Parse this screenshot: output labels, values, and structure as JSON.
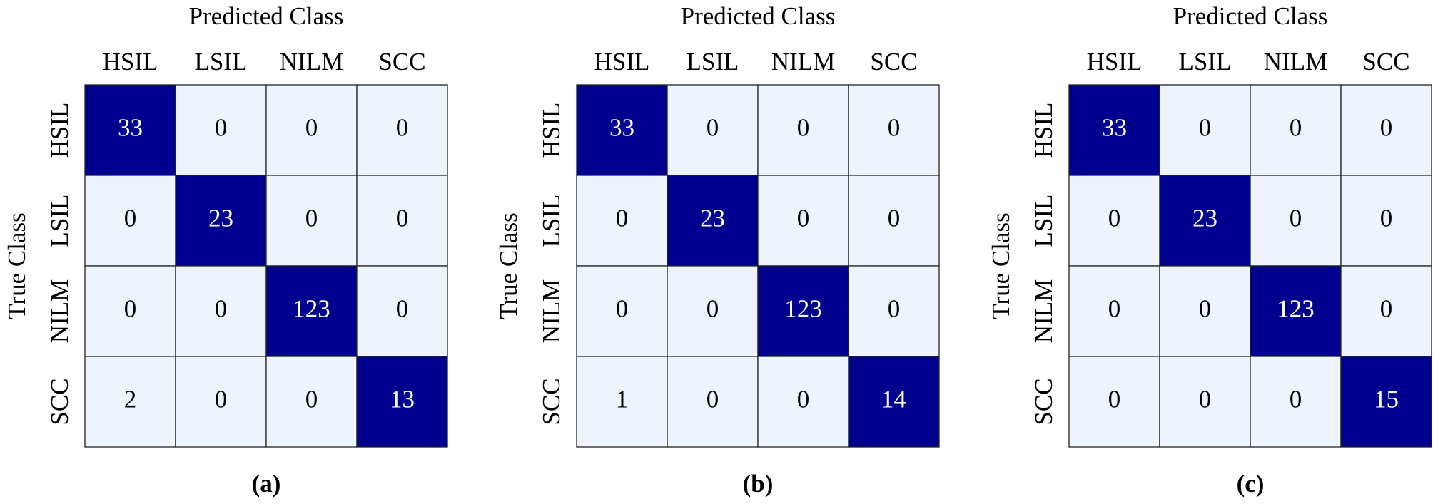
{
  "chart_data": [
    {
      "type": "heatmap",
      "x_label": "Predicted Class",
      "y_label": "True Class",
      "caption": "(a)",
      "x_categories": [
        "HSIL",
        "LSIL",
        "NILM",
        "SCC"
      ],
      "y_categories": [
        "HSIL",
        "LSIL",
        "NILM",
        "SCC"
      ],
      "values": [
        [
          33,
          0,
          0,
          0
        ],
        [
          0,
          23,
          0,
          0
        ],
        [
          0,
          0,
          123,
          0
        ],
        [
          2,
          0,
          0,
          13
        ]
      ],
      "diagonal_color": "#00008f",
      "off_diagonal_color": "#eef4fc"
    },
    {
      "type": "heatmap",
      "x_label": "Predicted Class",
      "y_label": "True Class",
      "caption": "(b)",
      "x_categories": [
        "HSIL",
        "LSIL",
        "NILM",
        "SCC"
      ],
      "y_categories": [
        "HSIL",
        "LSIL",
        "NILM",
        "SCC"
      ],
      "values": [
        [
          33,
          0,
          0,
          0
        ],
        [
          0,
          23,
          0,
          0
        ],
        [
          0,
          0,
          123,
          0
        ],
        [
          1,
          0,
          0,
          14
        ]
      ],
      "diagonal_color": "#00008f",
      "off_diagonal_color": "#eef4fc"
    },
    {
      "type": "heatmap",
      "x_label": "Predicted Class",
      "y_label": "True Class",
      "caption": "(c)",
      "x_categories": [
        "HSIL",
        "LSIL",
        "NILM",
        "SCC"
      ],
      "y_categories": [
        "HSIL",
        "LSIL",
        "NILM",
        "SCC"
      ],
      "values": [
        [
          33,
          0,
          0,
          0
        ],
        [
          0,
          23,
          0,
          0
        ],
        [
          0,
          0,
          123,
          0
        ],
        [
          0,
          0,
          0,
          15
        ]
      ],
      "diagonal_color": "#00008f",
      "off_diagonal_color": "#eef4fc"
    }
  ]
}
